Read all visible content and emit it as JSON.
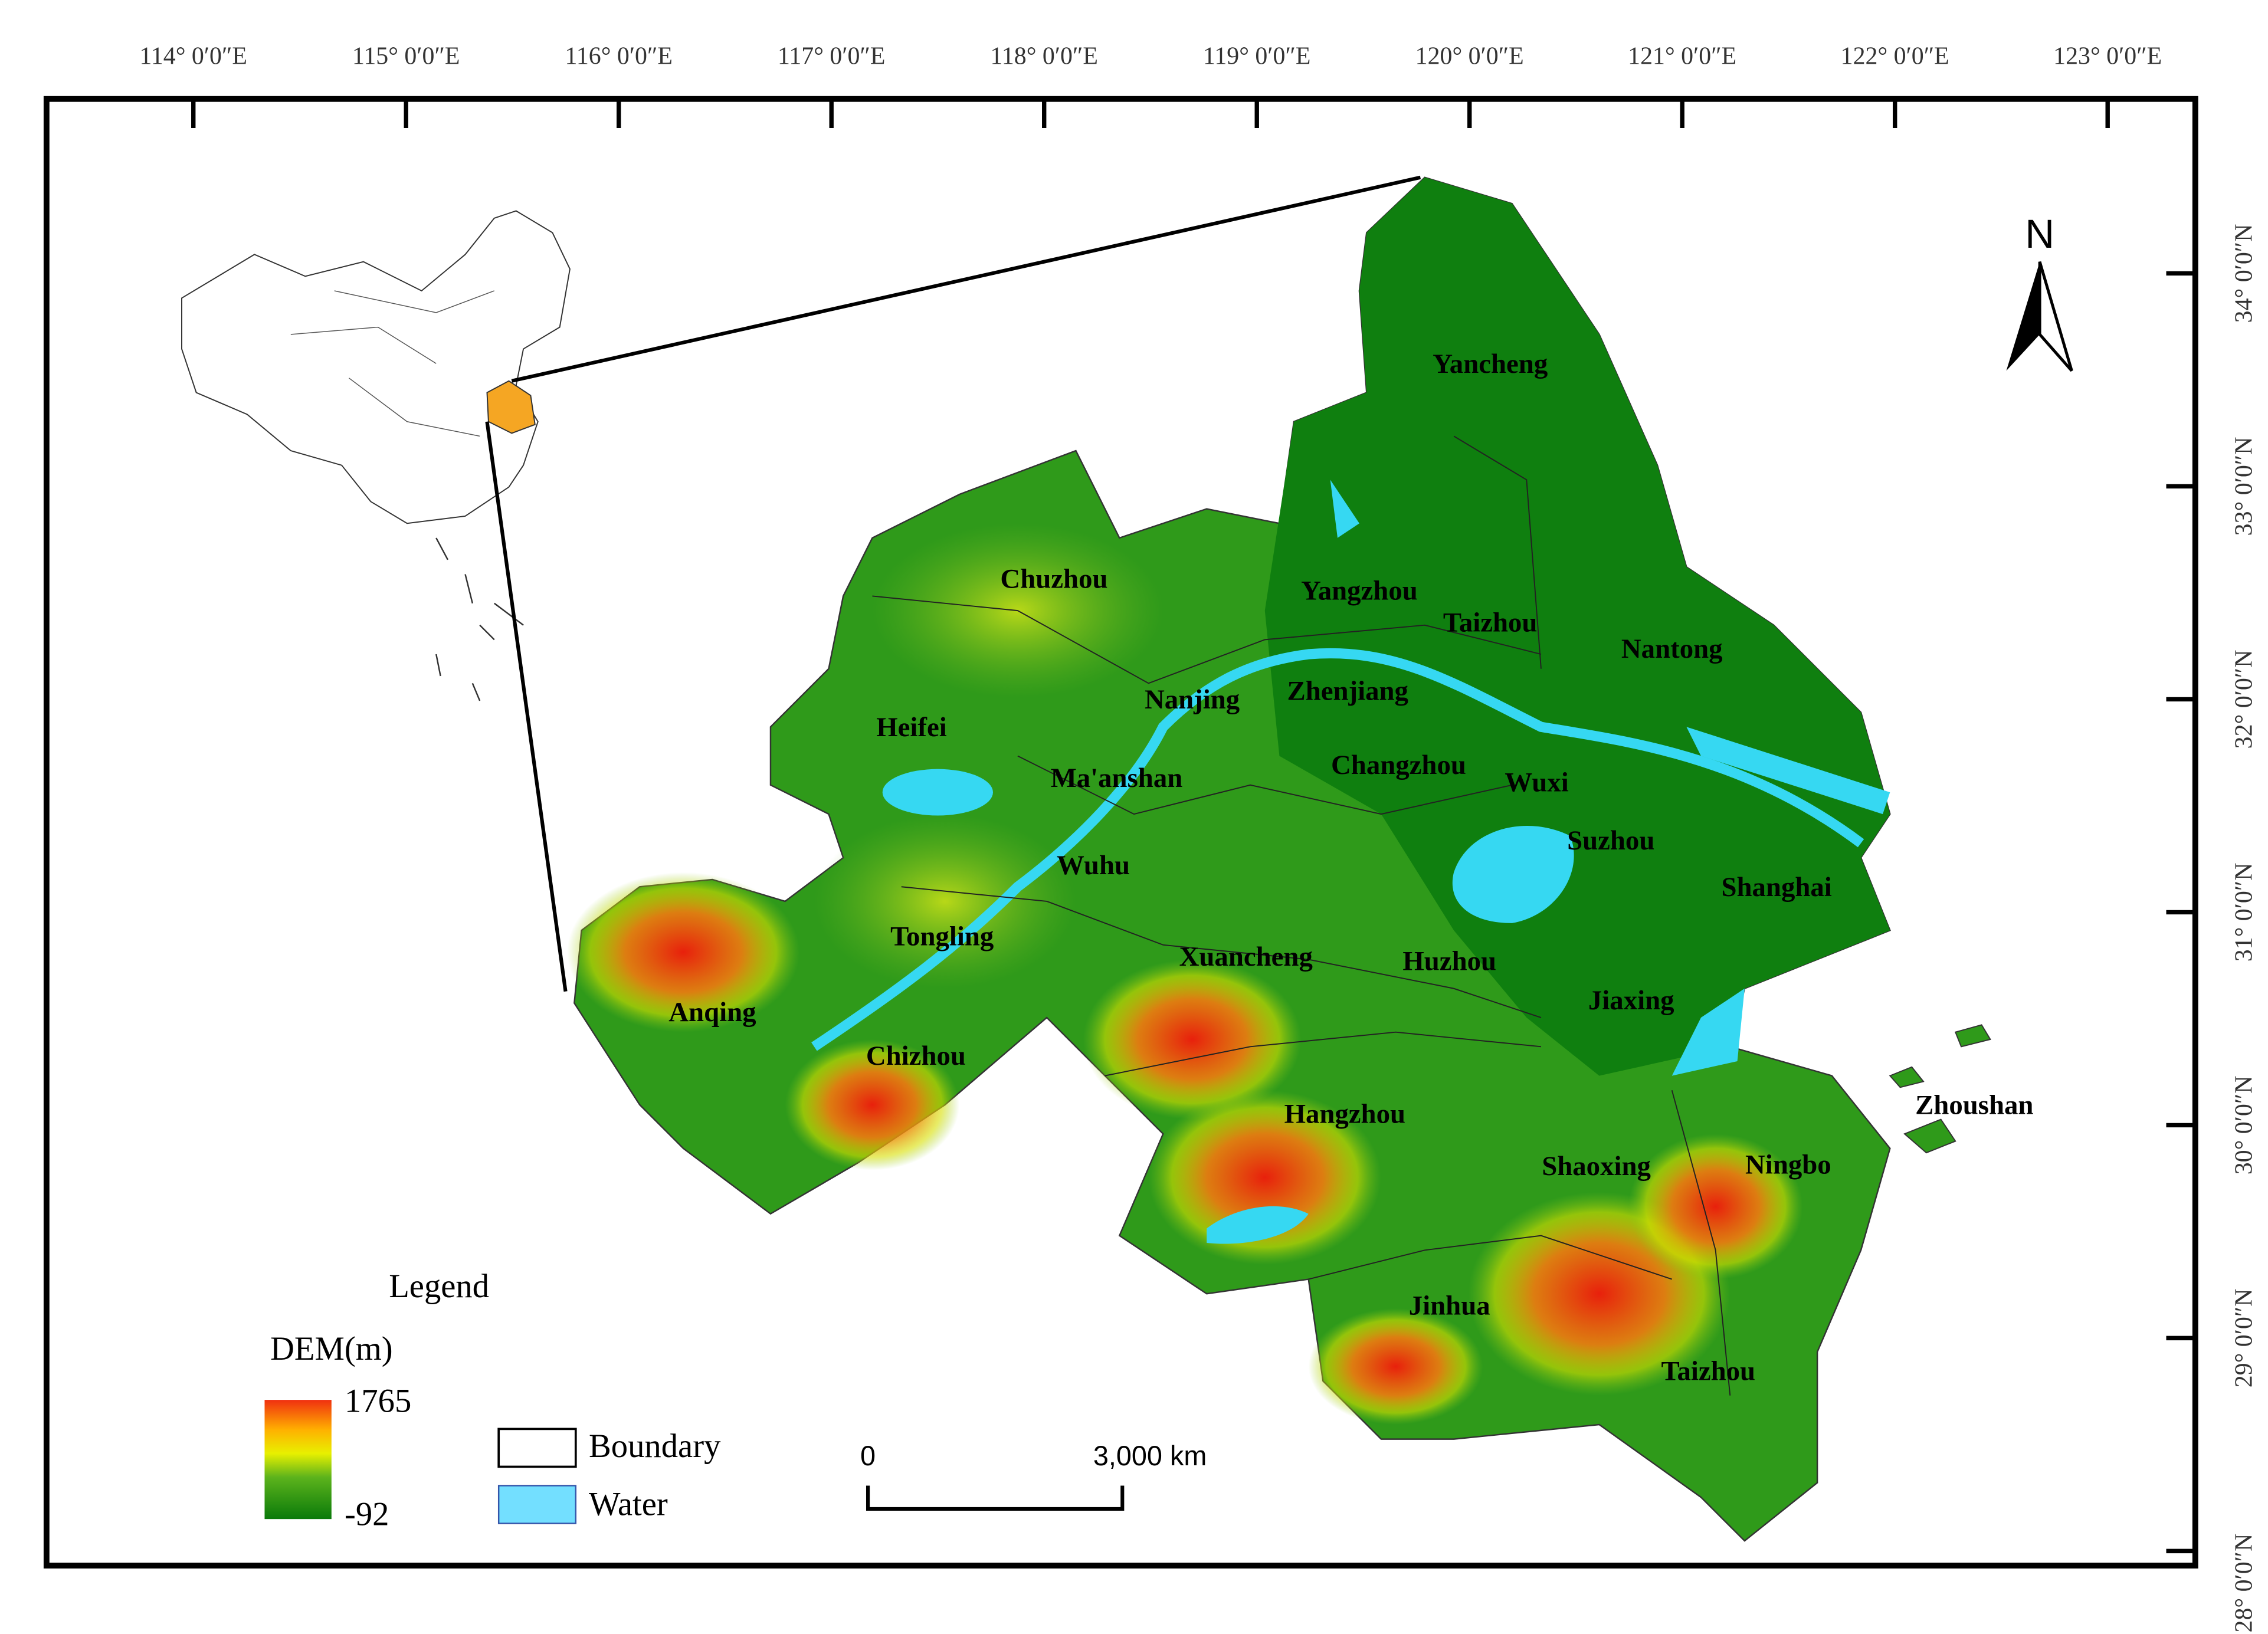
{
  "map": {
    "longitude_labels": [
      "114° 0′0″E",
      "115° 0′0″E",
      "116° 0′0″E",
      "117° 0′0″E",
      "118° 0′0″E",
      "119° 0′0″E",
      "120° 0′0″E",
      "121° 0′0″E",
      "122° 0′0″E",
      "123° 0′0″E"
    ],
    "latitude_labels": [
      "34° 0′0″N",
      "33° 0′0″N",
      "32° 0′0″N",
      "31° 0′0″N",
      "30° 0′0″N",
      "29° 0′0″N",
      "28° 0′0″N"
    ],
    "north": "N",
    "cities": [
      "Yancheng",
      "Chuzhou",
      "Yangzhou",
      "Taizhou",
      "Nantong",
      "Nanjing",
      "Zhenjiang",
      "Heifei",
      "Changzhou",
      "Wuxi",
      "Ma'anshan",
      "Suzhou",
      "Wuhu",
      "Shanghai",
      "Tongling",
      "Xuancheng",
      "Huzhou",
      "Jiaxing",
      "Anqing",
      "Chizhou",
      "Zhoushan",
      "Hangzhou",
      "Shaoxing",
      "Ningbo",
      "Jinhua",
      "Taizhou"
    ]
  },
  "legend": {
    "title": "Legend",
    "dem_title": "DEM(m)",
    "dem_max": "1765",
    "dem_min": "-92",
    "boundary": "Boundary",
    "water": "Water"
  },
  "scale_bar": {
    "start": "0",
    "end": "3,000 km"
  }
}
